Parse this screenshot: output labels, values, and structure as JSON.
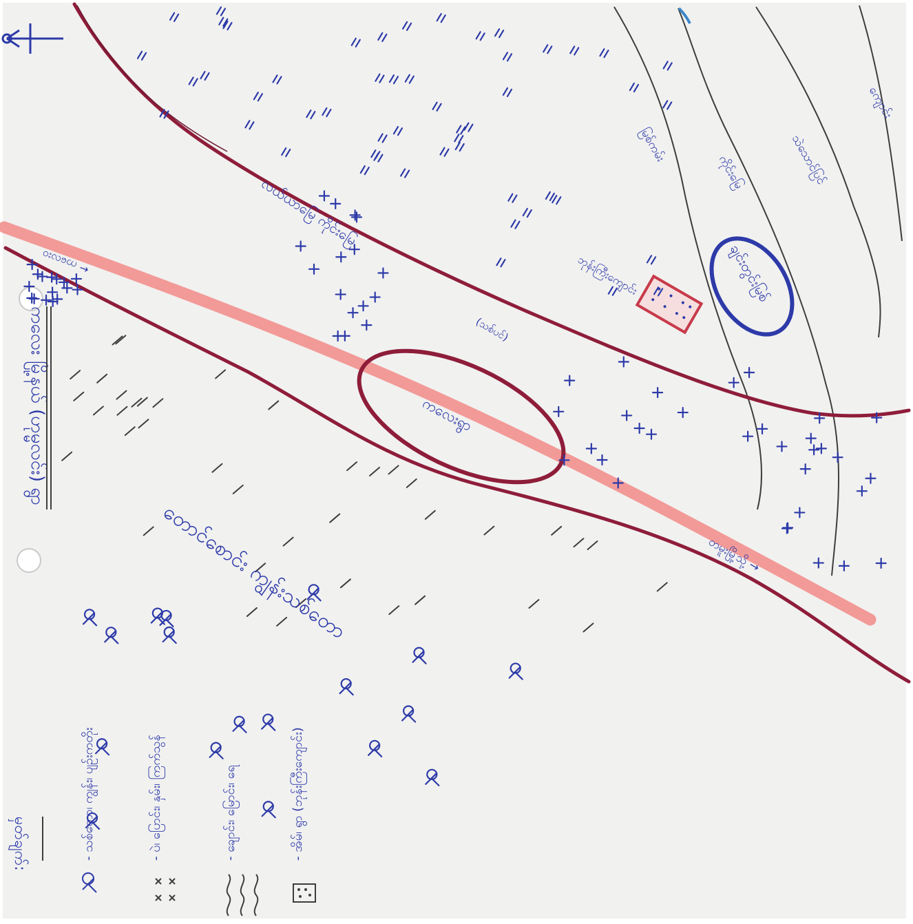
{
  "map": {
    "title": "ကလေး မြို့နယ် (ဟုမ္မလင်း) ရွာ",
    "labels": {
      "village_circle": "ကလေးရွာ",
      "paddy_area": "လယ်ယာမြေ ကိုင်းမြေ",
      "hillside": "တောင်စောင်း ကျွန်းသစ်တော",
      "river_blue": "ချင်းတွင်းမြစ်",
      "hamlet": "ရွာသစ်",
      "school": "ကျောင်း",
      "monastery": "ဘုန်းကြီးကျောင်း",
      "river_side": "မြစ်ကမ်း",
      "strip_a": "ကိုင်းမြေ",
      "strip_b": "သဲသောင်ပြင်",
      "road_to_left": "← ကလေးဝ",
      "road_to_right": "တမူးမြို့သို့ →",
      "sacred_tree": "(သစ်ပင်)"
    },
    "legend": {
      "heading": "မှတ်ချက်:",
      "items": [
        {
          "symbol": "tree",
          "text": "- သစ်တော၊ ကျွန်း၊ ပျဉ်းကတိုး"
        },
        {
          "symbol": "cross",
          "text": "- ပဲ၊ ပြောင်း၊ နှမ်း၊ ကြက်သွန်"
        },
        {
          "symbol": "wave",
          "text": "- ချောင်း၊ မြောင်း၊ ရေ"
        },
        {
          "symbol": "house",
          "text": "- အိမ်၊ ရွာ (ဘုန်းကြီးကျောင်း)"
        }
      ]
    },
    "colors": {
      "ink_blue": "#2d3aa8",
      "ink_maroon": "#8e1d3a",
      "road_pink": "#f29a97",
      "pencil": "#3d3d3d",
      "paper": "#f1f1f0"
    }
  }
}
